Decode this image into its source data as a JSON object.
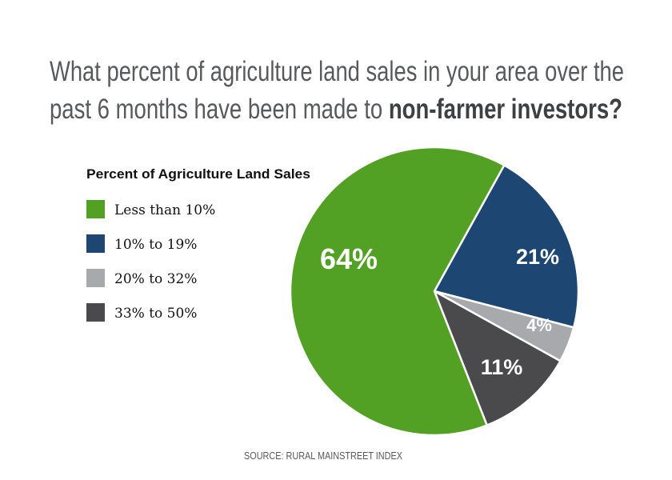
{
  "chart_data": {
    "type": "pie",
    "title_line1": "What percent of agriculture land sales in your area over the",
    "title_line2_regular": "past 6 months have been made to ",
    "title_line2_bold": "non-farmer investors?",
    "legend_title": "Percent of Agriculture Land Sales",
    "legend_placement": "left",
    "start_order": "clockwise from blue slice",
    "slices": [
      {
        "label": "10% to 19%",
        "value": 21,
        "display": "21%",
        "color": "#1d4673"
      },
      {
        "label": "20% to 32%",
        "value": 4,
        "display": "4%",
        "color": "#a7a9ac"
      },
      {
        "label": "33% to 50%",
        "value": 11,
        "display": "11%",
        "color": "#4a4a4c"
      },
      {
        "label": "Less than 10%",
        "value": 64,
        "display": "64%",
        "color": "#52a124"
      }
    ],
    "legend": [
      {
        "label": "Less than 10%",
        "color": "#52a124"
      },
      {
        "label": "10% to 19%",
        "color": "#1d4673"
      },
      {
        "label": "20% to 32%",
        "color": "#a7a9ac"
      },
      {
        "label": "33% to 50%",
        "color": "#4a4a4c"
      }
    ],
    "source": "SOURCE: RURAL MAINSTREET INDEX"
  }
}
